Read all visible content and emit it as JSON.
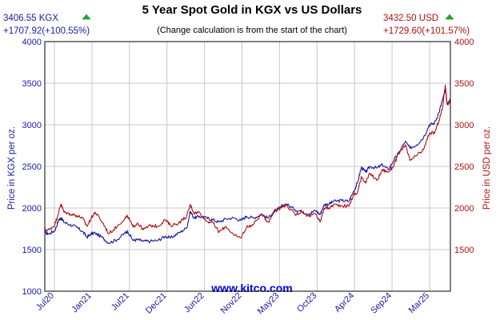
{
  "chart_data": {
    "type": "line",
    "title": "5 Year Spot Gold in KGX vs US Dollars",
    "subtitle": "(Change calculation is from the start of the chart)",
    "left_header": {
      "price": "3406.55 KGX",
      "change": "+1707.92(+100.55%)"
    },
    "right_header": {
      "price": "3432.50 USD",
      "change": "+1729.60(+101.57%)"
    },
    "ylabel_left": "Price in KGX per oz.",
    "ylabel_right": "Price in USD per oz.",
    "watermark": "www.kitco.com",
    "ylim": [
      1000,
      4000
    ],
    "y_ticks": [
      "1000",
      "1500",
      "2000",
      "2500",
      "3000",
      "3500",
      "4000"
    ],
    "y_ticks_right": [
      "1500",
      "2000",
      "2500",
      "3000",
      "3500",
      "4000"
    ],
    "x_tick_labels": [
      "Jul20",
      "Jan21",
      "Jul21",
      "Dec21",
      "Jun22",
      "Nov22",
      "May23",
      "Oct23",
      "Apr24",
      "Sep24",
      "Mar25"
    ],
    "grid": true,
    "colors": {
      "kgx": "#1a1aa6",
      "usd": "#b01010",
      "up_arrow": "#1fae1f",
      "watermark": "#0000ee",
      "title": "#000000"
    },
    "x_range": [
      "2020-05-26",
      "2025-05-15"
    ],
    "series": [
      {
        "name": "KGX",
        "color": "#1a1aa6",
        "points": [
          [
            "2020-05-26",
            1700
          ],
          [
            "2020-06-15",
            1690
          ],
          [
            "2020-07-10",
            1730
          ],
          [
            "2020-07-28",
            1860
          ],
          [
            "2020-08-06",
            1880
          ],
          [
            "2020-08-20",
            1830
          ],
          [
            "2020-09-15",
            1800
          ],
          [
            "2020-10-15",
            1770
          ],
          [
            "2020-11-10",
            1720
          ],
          [
            "2020-12-01",
            1650
          ],
          [
            "2020-12-20",
            1690
          ],
          [
            "2021-01-06",
            1700
          ],
          [
            "2021-02-10",
            1640
          ],
          [
            "2021-03-08",
            1580
          ],
          [
            "2021-04-15",
            1620
          ],
          [
            "2021-05-20",
            1700
          ],
          [
            "2021-06-01",
            1720
          ],
          [
            "2021-06-25",
            1610
          ],
          [
            "2021-07-15",
            1620
          ],
          [
            "2021-08-10",
            1600
          ],
          [
            "2021-09-10",
            1600
          ],
          [
            "2021-10-15",
            1610
          ],
          [
            "2021-11-15",
            1660
          ],
          [
            "2021-12-10",
            1640
          ],
          [
            "2022-01-15",
            1700
          ],
          [
            "2022-02-20",
            1760
          ],
          [
            "2022-03-08",
            1960
          ],
          [
            "2022-03-25",
            1880
          ],
          [
            "2022-04-18",
            1900
          ],
          [
            "2022-05-20",
            1880
          ],
          [
            "2022-06-15",
            1860
          ],
          [
            "2022-07-15",
            1830
          ],
          [
            "2022-08-15",
            1870
          ],
          [
            "2022-09-20",
            1880
          ],
          [
            "2022-10-20",
            1850
          ],
          [
            "2022-11-15",
            1900
          ],
          [
            "2022-12-15",
            1880
          ],
          [
            "2023-01-20",
            1920
          ],
          [
            "2023-02-20",
            1880
          ],
          [
            "2023-03-20",
            1950
          ],
          [
            "2023-04-15",
            2010
          ],
          [
            "2023-05-10",
            2050
          ],
          [
            "2023-06-20",
            1980
          ],
          [
            "2023-07-20",
            1960
          ],
          [
            "2023-08-20",
            1930
          ],
          [
            "2023-09-20",
            1970
          ],
          [
            "2023-10-10",
            1920
          ],
          [
            "2023-10-28",
            2040
          ],
          [
            "2023-11-20",
            2050
          ],
          [
            "2023-12-10",
            2080
          ],
          [
            "2024-01-15",
            2090
          ],
          [
            "2024-02-15",
            2080
          ],
          [
            "2024-03-08",
            2200
          ],
          [
            "2024-03-25",
            2300
          ],
          [
            "2024-04-12",
            2490
          ],
          [
            "2024-05-01",
            2430
          ],
          [
            "2024-05-20",
            2500
          ],
          [
            "2024-06-20",
            2480
          ],
          [
            "2024-07-15",
            2520
          ],
          [
            "2024-08-10",
            2460
          ],
          [
            "2024-09-01",
            2560
          ],
          [
            "2024-09-25",
            2660
          ],
          [
            "2024-10-25",
            2800
          ],
          [
            "2024-11-15",
            2720
          ],
          [
            "2024-12-15",
            2760
          ],
          [
            "2025-01-15",
            2850
          ],
          [
            "2025-02-10",
            3000
          ],
          [
            "2025-03-05",
            3020
          ],
          [
            "2025-03-25",
            3150
          ],
          [
            "2025-04-10",
            3300
          ],
          [
            "2025-04-22",
            3420
          ],
          [
            "2025-05-01",
            3240
          ],
          [
            "2025-05-15",
            3300
          ]
        ]
      },
      {
        "name": "USD",
        "color": "#b01010",
        "points": [
          [
            "2020-05-26",
            1730
          ],
          [
            "2020-06-15",
            1740
          ],
          [
            "2020-07-10",
            1800
          ],
          [
            "2020-07-28",
            1960
          ],
          [
            "2020-08-06",
            2050
          ],
          [
            "2020-08-20",
            1950
          ],
          [
            "2020-09-15",
            1930
          ],
          [
            "2020-10-15",
            1910
          ],
          [
            "2020-11-10",
            1880
          ],
          [
            "2020-12-01",
            1780
          ],
          [
            "2020-12-20",
            1880
          ],
          [
            "2021-01-06",
            1950
          ],
          [
            "2021-02-10",
            1820
          ],
          [
            "2021-03-08",
            1690
          ],
          [
            "2021-04-15",
            1780
          ],
          [
            "2021-05-20",
            1880
          ],
          [
            "2021-06-01",
            1900
          ],
          [
            "2021-06-25",
            1770
          ],
          [
            "2021-07-15",
            1820
          ],
          [
            "2021-08-10",
            1740
          ],
          [
            "2021-09-10",
            1790
          ],
          [
            "2021-10-15",
            1780
          ],
          [
            "2021-11-15",
            1860
          ],
          [
            "2021-12-10",
            1790
          ],
          [
            "2022-01-15",
            1820
          ],
          [
            "2022-02-20",
            1900
          ],
          [
            "2022-03-08",
            2040
          ],
          [
            "2022-03-25",
            1940
          ],
          [
            "2022-04-18",
            1950
          ],
          [
            "2022-05-20",
            1840
          ],
          [
            "2022-06-15",
            1830
          ],
          [
            "2022-07-15",
            1710
          ],
          [
            "2022-08-15",
            1780
          ],
          [
            "2022-09-20",
            1670
          ],
          [
            "2022-10-20",
            1640
          ],
          [
            "2022-11-15",
            1770
          ],
          [
            "2022-12-15",
            1800
          ],
          [
            "2023-01-20",
            1930
          ],
          [
            "2023-02-20",
            1830
          ],
          [
            "2023-03-20",
            1980
          ],
          [
            "2023-04-15",
            2000
          ],
          [
            "2023-05-10",
            2040
          ],
          [
            "2023-06-20",
            1920
          ],
          [
            "2023-07-20",
            1960
          ],
          [
            "2023-08-20",
            1900
          ],
          [
            "2023-09-20",
            1930
          ],
          [
            "2023-10-10",
            1830
          ],
          [
            "2023-10-28",
            2000
          ],
          [
            "2023-11-20",
            2000
          ],
          [
            "2023-12-10",
            2040
          ],
          [
            "2024-01-15",
            2030
          ],
          [
            "2024-02-15",
            2020
          ],
          [
            "2024-03-08",
            2160
          ],
          [
            "2024-03-25",
            2180
          ],
          [
            "2024-04-12",
            2380
          ],
          [
            "2024-05-01",
            2300
          ],
          [
            "2024-05-20",
            2420
          ],
          [
            "2024-06-20",
            2330
          ],
          [
            "2024-07-15",
            2460
          ],
          [
            "2024-08-10",
            2430
          ],
          [
            "2024-09-01",
            2500
          ],
          [
            "2024-09-25",
            2650
          ],
          [
            "2024-10-25",
            2760
          ],
          [
            "2024-11-15",
            2570
          ],
          [
            "2024-12-15",
            2630
          ],
          [
            "2025-01-15",
            2700
          ],
          [
            "2025-02-10",
            2900
          ],
          [
            "2025-03-05",
            2900
          ],
          [
            "2025-03-25",
            3050
          ],
          [
            "2025-04-10",
            3200
          ],
          [
            "2025-04-22",
            3480
          ],
          [
            "2025-05-01",
            3240
          ],
          [
            "2025-05-15",
            3300
          ]
        ]
      }
    ]
  }
}
